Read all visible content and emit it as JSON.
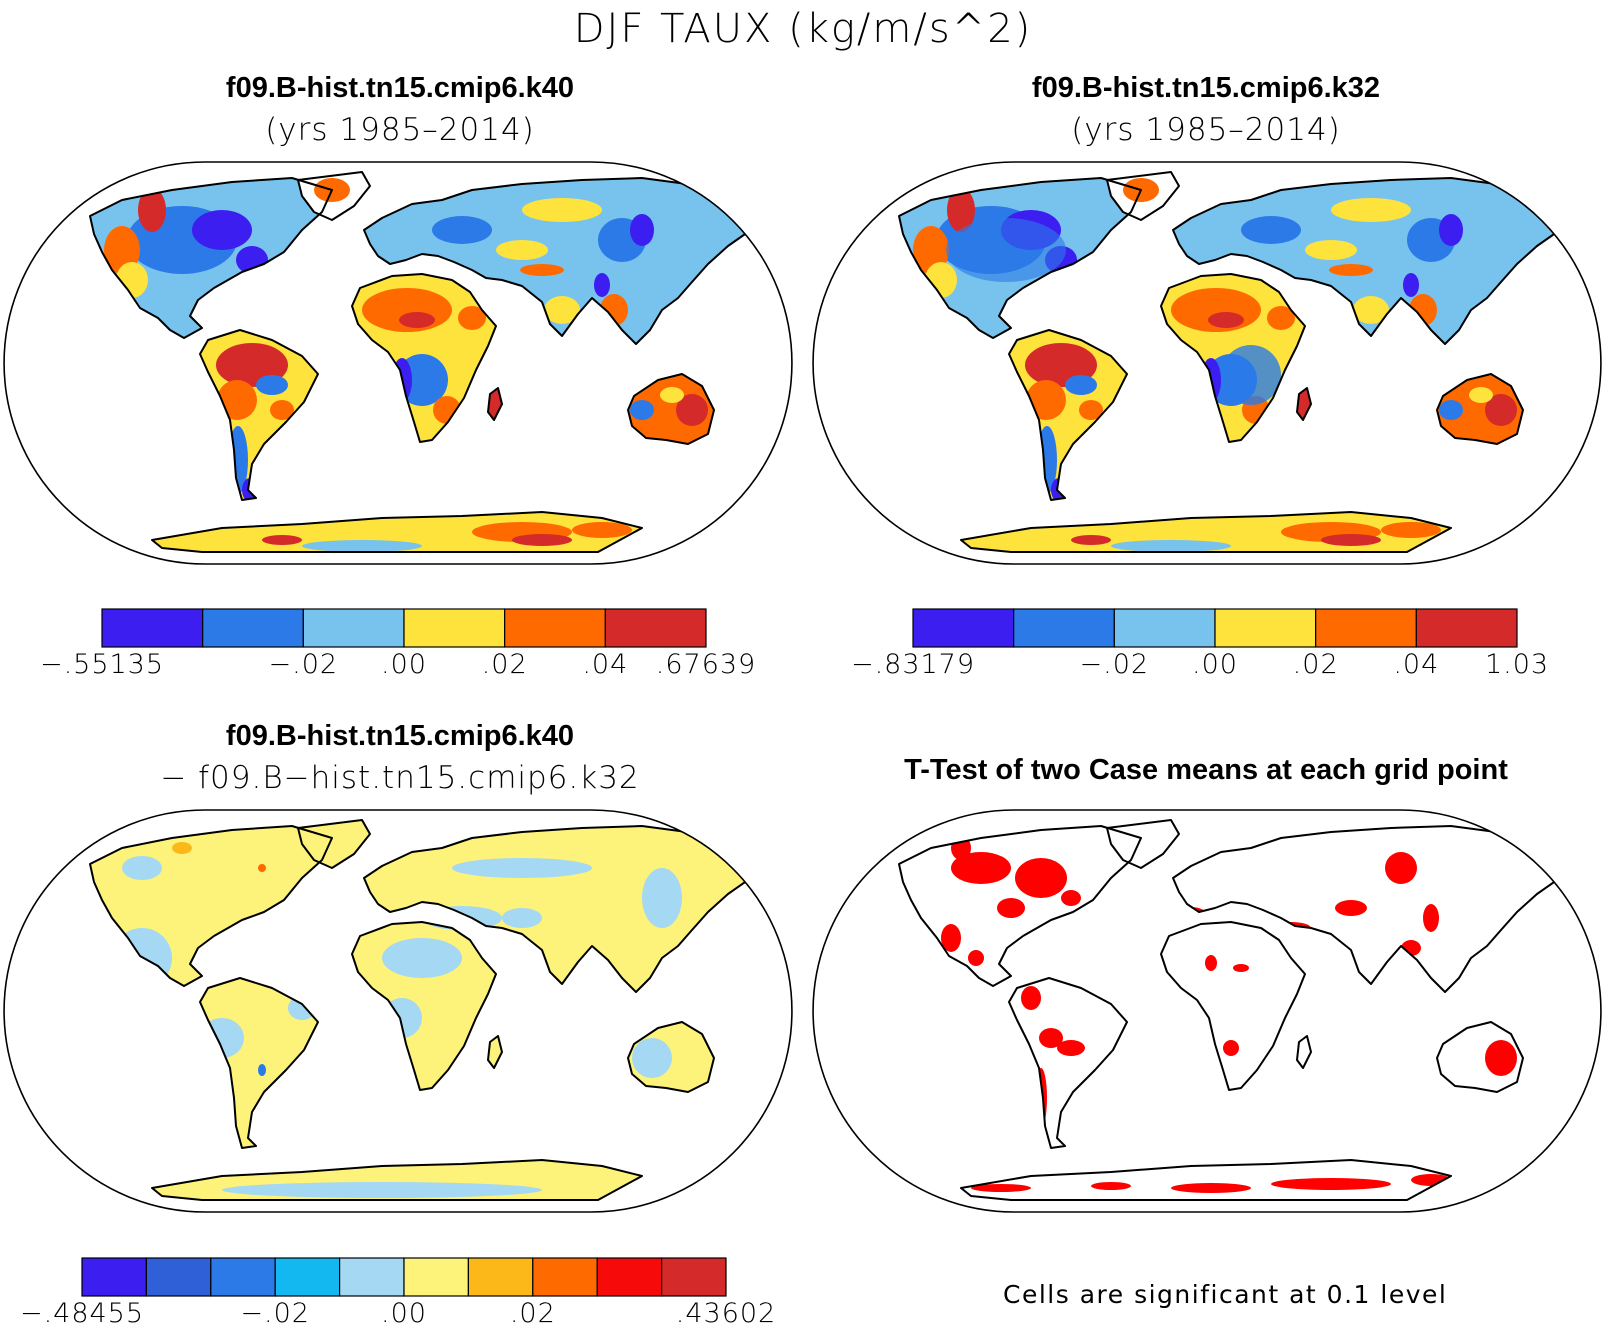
{
  "figure": {
    "title": "DJF TAUX (kg/m/s^2)"
  },
  "panels": [
    {
      "id": "case1",
      "title": "f09.B-hist.tn15.cmip6.k40",
      "subtitle": "(yrs 1985–2014)",
      "colorbar": {
        "colors": [
          "#3c1ef0",
          "#2b7ae8",
          "#78c3ee",
          "#fde33b",
          "#ff6a00",
          "#d42a2a"
        ],
        "labels": [
          "−.55135",
          "−.02",
          ".00",
          ".02",
          ".04",
          ".67639"
        ]
      }
    },
    {
      "id": "case2",
      "title": "f09.B-hist.tn15.cmip6.k32",
      "subtitle": "(yrs 1985–2014)",
      "colorbar": {
        "colors": [
          "#3c1ef0",
          "#2b7ae8",
          "#78c3ee",
          "#fde33b",
          "#ff6a00",
          "#d42a2a"
        ],
        "labels": [
          "−.83179",
          "−.02",
          ".00",
          ".02",
          ".04",
          "1.03"
        ]
      }
    },
    {
      "id": "difference",
      "title": "f09.B-hist.tn15.cmip6.k40",
      "subtitle": "− f09.B−hist.tn15.cmip6.k32",
      "colorbar": {
        "colors": [
          "#3c1ef0",
          "#3060d8",
          "#2b7ae8",
          "#14b8f0",
          "#a4d8f3",
          "#fdf27a",
          "#fbb818",
          "#ff6a00",
          "#f60a0a",
          "#d42a2a"
        ],
        "labels": [
          "−.48455",
          "−.02",
          ".00",
          ".02",
          ".43602"
        ]
      }
    },
    {
      "id": "ttest",
      "title": "T-Test of two Case means at each grid point",
      "note": "Cells are significant at 0.1 level",
      "significant_color": "#ff0000"
    }
  ]
}
